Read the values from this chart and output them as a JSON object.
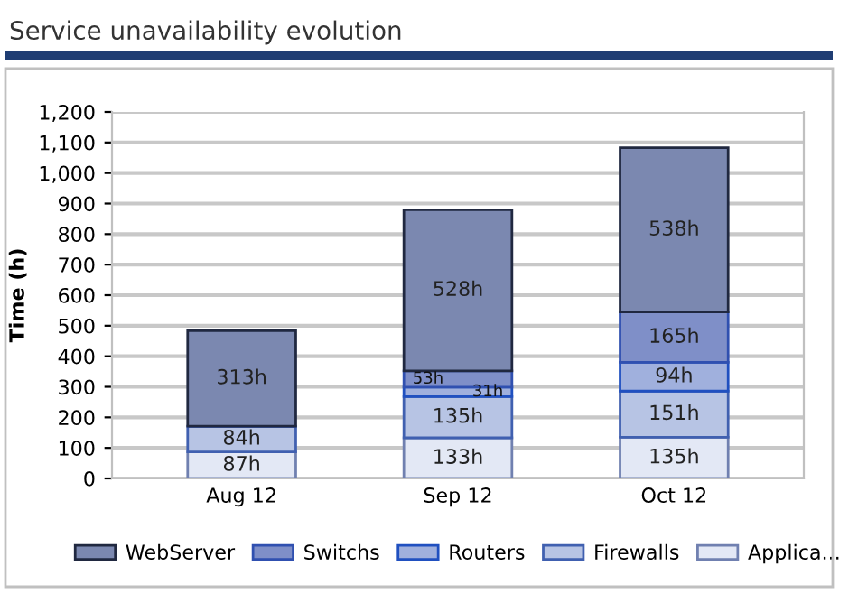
{
  "chart_data": {
    "type": "bar",
    "title": "Service unavailability evolution",
    "ylabel": "Time (h)",
    "categories": [
      "Aug 12",
      "Sep 12",
      "Oct 12"
    ],
    "stacked": true,
    "series": [
      {
        "name": "Applica...",
        "color": "#e3e8f5",
        "values": [
          87,
          133,
          135
        ],
        "value_labels": [
          "87h",
          "133h",
          "135h"
        ]
      },
      {
        "name": "Firewalls",
        "color": "#b7c4e4",
        "values": [
          84,
          135,
          151
        ],
        "value_labels": [
          "84h",
          "135h",
          "151h"
        ]
      },
      {
        "name": "Routers",
        "color": "#a0b0dd",
        "values": [
          0,
          31,
          94
        ],
        "value_labels": [
          null,
          "31h",
          "94h"
        ]
      },
      {
        "name": "Switchs",
        "color": "#7f8fc8",
        "values": [
          0,
          53,
          165
        ],
        "value_labels": [
          null,
          "53h",
          "165h"
        ]
      },
      {
        "name": "WebServer",
        "color": "#7b88b0",
        "values": [
          313,
          528,
          538
        ],
        "value_labels": [
          "313h",
          "528h",
          "538h"
        ]
      }
    ],
    "ylim": [
      0,
      1200
    ],
    "yticks": [
      0,
      100,
      200,
      300,
      400,
      500,
      600,
      700,
      800,
      900,
      {
        "value": 1000,
        "label": "1,000"
      },
      {
        "value": 1100,
        "label": "1,100"
      },
      {
        "value": 1200,
        "label": "1,200"
      }
    ],
    "grid": "y",
    "legend": "bottom"
  }
}
